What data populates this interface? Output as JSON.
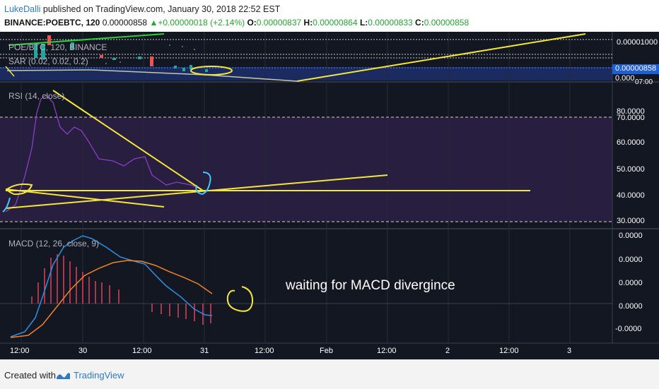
{
  "header": {
    "author": "LukeDalli",
    "published": "published on TradingView.com, January 30, 2018 22:52 EST",
    "symbol": "BINANCE:POEBTC, 120",
    "last": "0.00000858",
    "change_arrow": "▲",
    "change": "+0.00000018 (+2.14%)",
    "o_label": "O:",
    "o_val": "0.00000837",
    "h_label": "H:",
    "h_val": "0.00000864",
    "l_label": "L:",
    "l_val": "0.00000833",
    "c_label": "C:",
    "c_val": "0.00000858"
  },
  "price_pane": {
    "legend1": "POE/BTC, 120, BINANCE",
    "legend2": "SAR (0.02, 0.02, 0.2)",
    "axis": [
      "0.00001000",
      "0.00000858",
      "0.000"
    ],
    "axis_extra": "07:00"
  },
  "rsi_pane": {
    "legend": "RSI (14, close)",
    "axis": [
      "80.0000",
      "70.0000",
      "60.0000",
      "50.0000",
      "40.0000",
      "30.0000"
    ]
  },
  "macd_pane": {
    "legend": "MACD (12, 26, close, 9)",
    "axis": [
      "0.0000",
      "0.0000",
      "0.0000",
      "0.0000",
      "-0.0000"
    ],
    "annotation": "waiting for MACD divergince"
  },
  "time_axis": [
    "12:00",
    "30",
    "12:00",
    "31",
    "12:00",
    "Feb",
    "12:00",
    "2",
    "12:00",
    "3"
  ],
  "footer": {
    "created": "Created with",
    "brand": "TradingView"
  },
  "colors": {
    "background": "#131722",
    "annotation": "#f5e63a",
    "rsi": "#8a3fc2",
    "macd": "#2f8fe6",
    "signal": "#f0822a",
    "histogram": "#e0405a",
    "brand": "#2a7ac7"
  }
}
